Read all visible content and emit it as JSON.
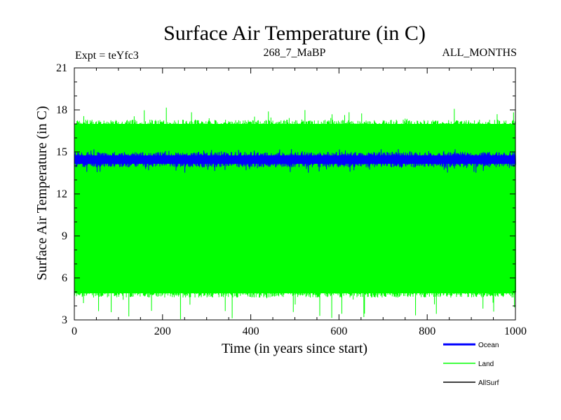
{
  "chart_data": {
    "type": "line",
    "title": "Surface Air Temperature (in C)",
    "subtitle_left": "Expt = teYfc3",
    "subtitle_center": "268_7_MaBP",
    "subtitle_right": "ALL_MONTHS",
    "xlabel": "Time (in years since start)",
    "ylabel": "Surface Air Temperature (in C)",
    "xlim": [
      0,
      1000
    ],
    "ylim": [
      3,
      21
    ],
    "xticks": [
      0,
      200,
      400,
      600,
      800,
      1000
    ],
    "yticks": [
      3,
      6,
      9,
      12,
      15,
      18,
      21
    ],
    "legend_position": "below-right",
    "series": [
      {
        "name": "Land",
        "color": "#00ff00",
        "mean": 11.0,
        "max_typical": 17.3,
        "min_typical": 4.6,
        "max_peak": 18.2,
        "min_peak": 3.0
      },
      {
        "name": "Ocean",
        "color": "#0000ff",
        "mean": 14.5,
        "max_typical": 15.0,
        "min_typical": 13.9,
        "max_peak": 15.2,
        "min_peak": 13.5
      },
      {
        "name": "AllSurf",
        "color": "#000000"
      }
    ]
  }
}
